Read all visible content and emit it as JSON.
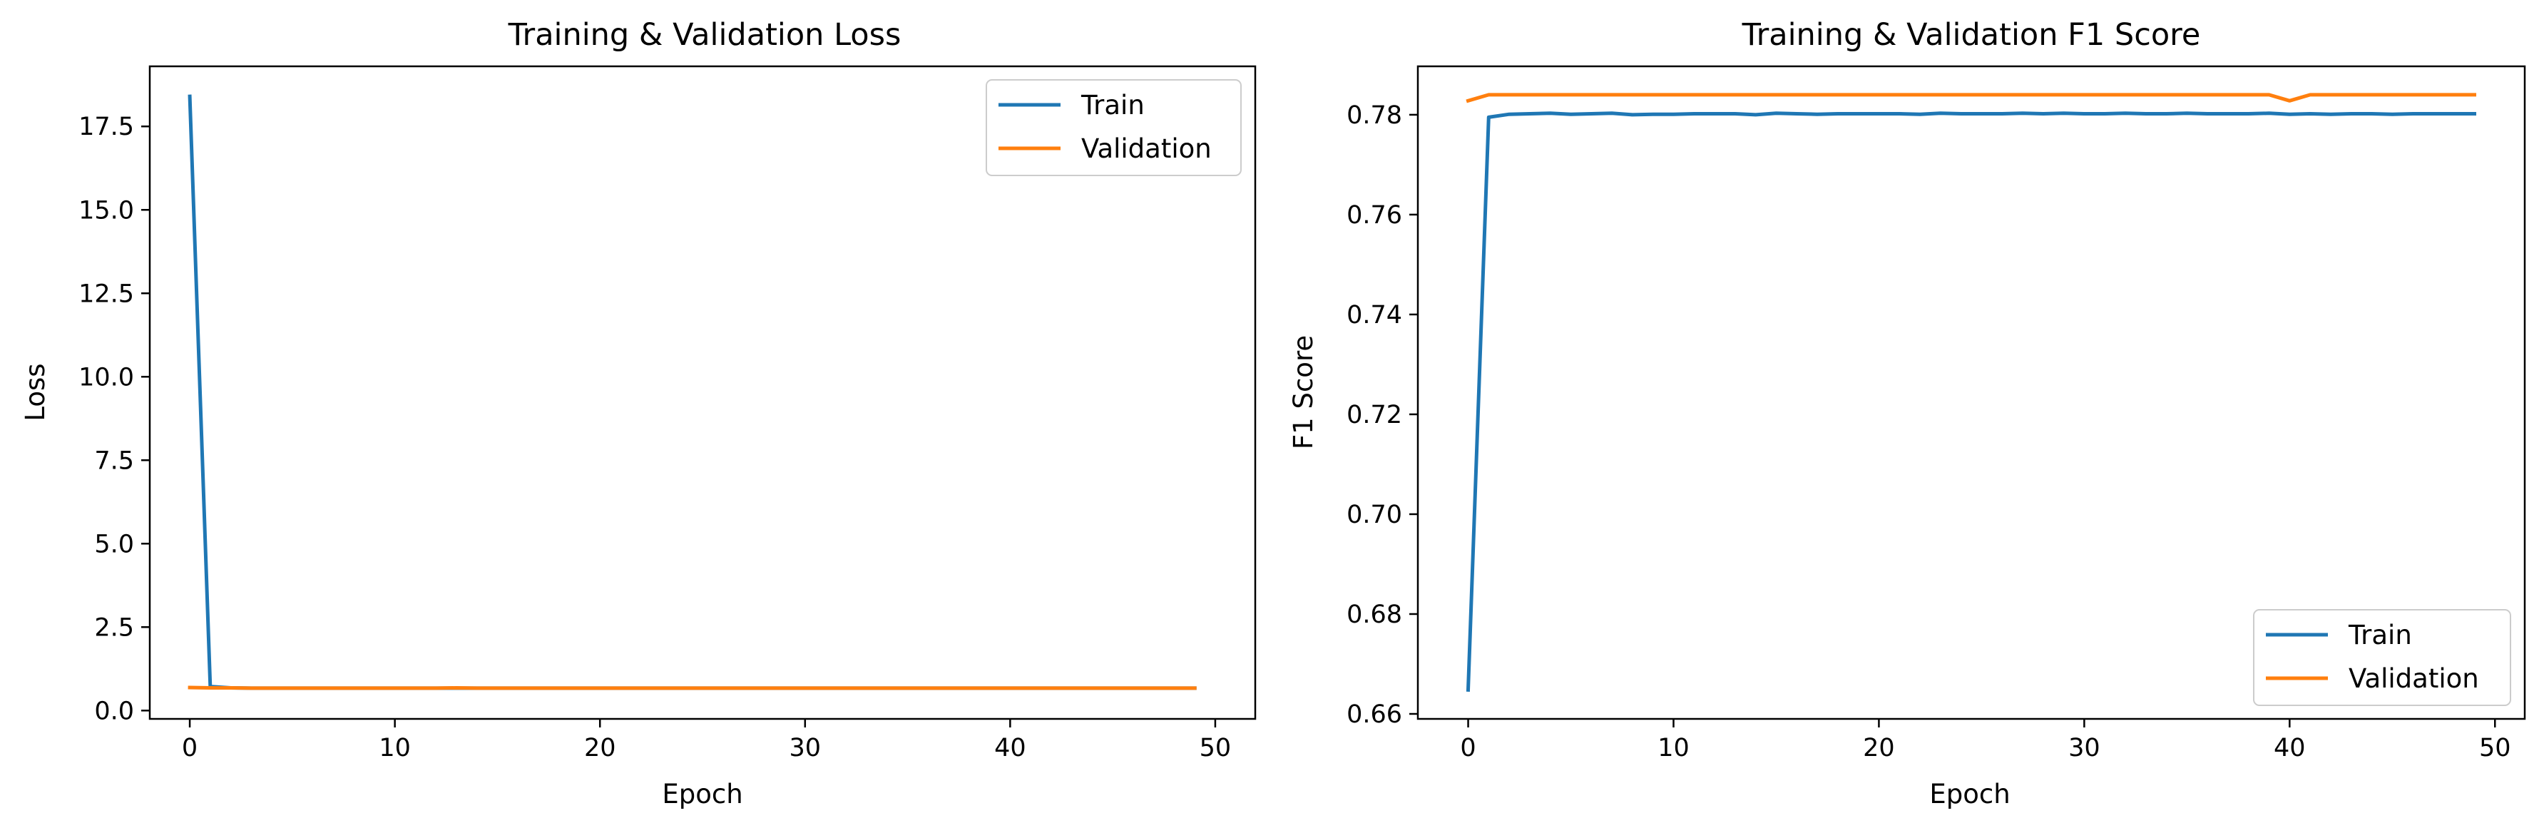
{
  "charts": [
    {
      "id": "loss",
      "chart_data": {
        "type": "line",
        "title": "Training & Validation Loss",
        "xlabel": "Epoch",
        "ylabel": "Loss",
        "xlim": [
          -1.95,
          51.95
        ],
        "ylim": [
          -0.25,
          19.3
        ],
        "xticks": [
          0,
          10,
          20,
          30,
          40,
          50
        ],
        "yticks": [
          0.0,
          2.5,
          5.0,
          7.5,
          10.0,
          12.5,
          15.0,
          17.5
        ],
        "ytick_decimals": 1,
        "grid": false,
        "legend": "top-right",
        "x": [
          0,
          1,
          2,
          3,
          4,
          5,
          6,
          7,
          8,
          9,
          10,
          11,
          12,
          13,
          14,
          15,
          16,
          17,
          18,
          19,
          20,
          21,
          22,
          23,
          24,
          25,
          26,
          27,
          28,
          29,
          30,
          31,
          32,
          33,
          34,
          35,
          36,
          37,
          38,
          39,
          40,
          41,
          42,
          43,
          44,
          45,
          46,
          47,
          48,
          49
        ],
        "series": [
          {
            "name": "Train",
            "color": "#1f77b4",
            "values": [
              18.4,
              0.72,
              0.68,
              0.67,
              0.67,
              0.67,
              0.67,
              0.67,
              0.67,
              0.67,
              0.67,
              0.67,
              0.67,
              0.67,
              0.67,
              0.67,
              0.67,
              0.67,
              0.67,
              0.67,
              0.67,
              0.67,
              0.67,
              0.67,
              0.67,
              0.67,
              0.67,
              0.67,
              0.67,
              0.67,
              0.67,
              0.67,
              0.67,
              0.67,
              0.67,
              0.67,
              0.67,
              0.67,
              0.67,
              0.67,
              0.67,
              0.67,
              0.67,
              0.67,
              0.67,
              0.67,
              0.67,
              0.67,
              0.67,
              0.67
            ]
          },
          {
            "name": "Validation",
            "color": "#ff7f0e",
            "values": [
              0.69,
              0.68,
              0.68,
              0.67,
              0.67,
              0.67,
              0.67,
              0.67,
              0.67,
              0.67,
              0.67,
              0.67,
              0.67,
              0.68,
              0.67,
              0.67,
              0.67,
              0.67,
              0.67,
              0.67,
              0.67,
              0.67,
              0.67,
              0.67,
              0.67,
              0.67,
              0.67,
              0.67,
              0.67,
              0.67,
              0.67,
              0.67,
              0.67,
              0.67,
              0.67,
              0.67,
              0.67,
              0.67,
              0.67,
              0.67,
              0.67,
              0.67,
              0.67,
              0.67,
              0.67,
              0.67,
              0.67,
              0.67,
              0.67,
              0.67
            ]
          }
        ]
      }
    },
    {
      "id": "f1",
      "chart_data": {
        "type": "line",
        "title": "Training & Validation F1 Score",
        "xlabel": "Epoch",
        "ylabel": "F1 Score",
        "xlim": [
          -2.45,
          51.45
        ],
        "ylim": [
          0.659,
          0.7897
        ],
        "xticks": [
          0,
          10,
          20,
          30,
          40,
          50
        ],
        "yticks": [
          0.66,
          0.68,
          0.7,
          0.72,
          0.74,
          0.76,
          0.78
        ],
        "ytick_decimals": 2,
        "grid": false,
        "legend": "bottom-right",
        "x": [
          0,
          1,
          2,
          3,
          4,
          5,
          6,
          7,
          8,
          9,
          10,
          11,
          12,
          13,
          14,
          15,
          16,
          17,
          18,
          19,
          20,
          21,
          22,
          23,
          24,
          25,
          26,
          27,
          28,
          29,
          30,
          31,
          32,
          33,
          34,
          35,
          36,
          37,
          38,
          39,
          40,
          41,
          42,
          43,
          44,
          45,
          46,
          47,
          48,
          49
        ],
        "series": [
          {
            "name": "Train",
            "color": "#1f77b4",
            "values": [
              0.6648,
              0.7795,
              0.7801,
              0.7802,
              0.7803,
              0.7801,
              0.7802,
              0.7803,
              0.78,
              0.7801,
              0.7801,
              0.7802,
              0.7802,
              0.7802,
              0.78,
              0.7803,
              0.7802,
              0.7801,
              0.7802,
              0.7802,
              0.7802,
              0.7802,
              0.7801,
              0.7803,
              0.7802,
              0.7802,
              0.7802,
              0.7803,
              0.7802,
              0.7803,
              0.7802,
              0.7802,
              0.7803,
              0.7802,
              0.7802,
              0.7803,
              0.7802,
              0.7802,
              0.7802,
              0.7803,
              0.7801,
              0.7802,
              0.7801,
              0.7802,
              0.7802,
              0.7801,
              0.7802,
              0.7802,
              0.7802,
              0.7802
            ]
          },
          {
            "name": "Validation",
            "color": "#ff7f0e",
            "values": [
              0.7828,
              0.784,
              0.784,
              0.784,
              0.784,
              0.784,
              0.784,
              0.784,
              0.784,
              0.784,
              0.784,
              0.784,
              0.784,
              0.784,
              0.784,
              0.784,
              0.784,
              0.784,
              0.784,
              0.784,
              0.784,
              0.784,
              0.784,
              0.784,
              0.784,
              0.784,
              0.784,
              0.784,
              0.784,
              0.784,
              0.784,
              0.784,
              0.784,
              0.784,
              0.784,
              0.784,
              0.784,
              0.784,
              0.784,
              0.784,
              0.7828,
              0.784,
              0.784,
              0.784,
              0.784,
              0.784,
              0.784,
              0.784,
              0.784,
              0.784
            ]
          }
        ]
      }
    }
  ]
}
